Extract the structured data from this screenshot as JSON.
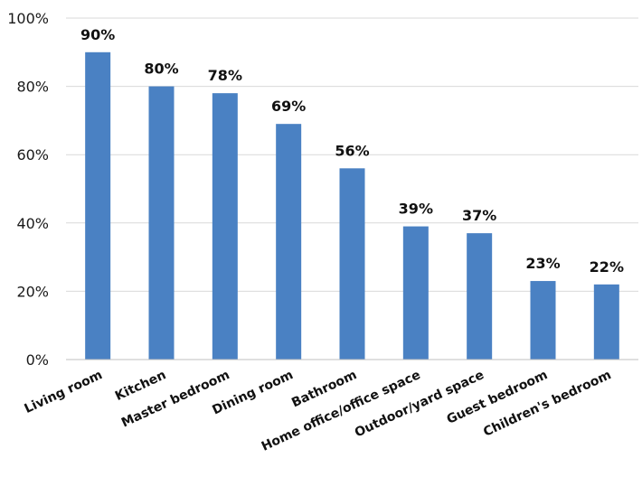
{
  "chart_data": {
    "type": "bar",
    "title": "",
    "xlabel": "",
    "ylabel": "",
    "categories": [
      "Living room",
      "Kitchen",
      "Master bedroom",
      "Dining room",
      "Bathroom",
      "Home office/office space",
      "Outdoor/yard space",
      "Guest bedroom",
      "Children's bedroom"
    ],
    "values": [
      90,
      80,
      78,
      69,
      56,
      39,
      37,
      23,
      22
    ],
    "data_labels": [
      "90%",
      "80%",
      "78%",
      "69%",
      "56%",
      "39%",
      "37%",
      "23%",
      "22%"
    ],
    "ylim": [
      0,
      100
    ],
    "y_ticks": [
      0,
      20,
      40,
      60,
      80,
      100
    ],
    "y_tick_labels": [
      "0%",
      "20%",
      "40%",
      "60%",
      "80%",
      "100%"
    ],
    "grid": true,
    "legend": "none",
    "bar_color": "#4a81c3"
  }
}
